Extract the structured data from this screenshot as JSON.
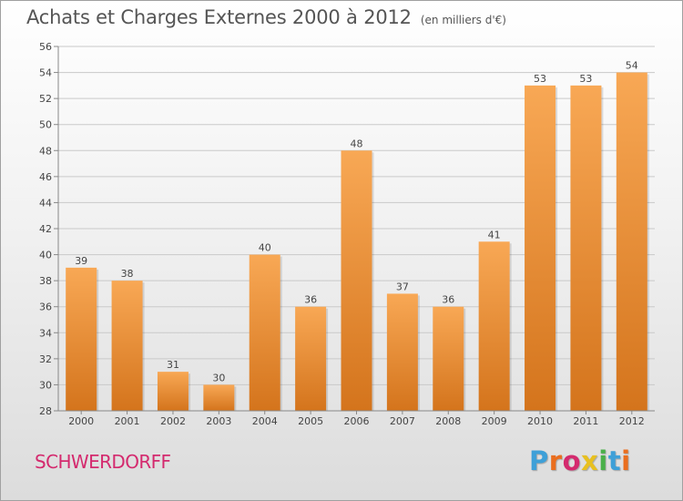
{
  "header": {
    "title": "Achats et Charges Externes 2000 à 2012",
    "unit_note": "(en milliers d'€)"
  },
  "footer": {
    "commune": "SCHWERDORFF",
    "brand": "Proxiti",
    "brand_colors": [
      "#3ea0d8",
      "#ea6e1e",
      "#d42a6e",
      "#e8c020",
      "#4ab04a",
      "#3ea0d8",
      "#ea6e1e"
    ]
  },
  "colors": {
    "bar_light": "#f8a855",
    "bar_dark": "#d4741c",
    "grid": "#c9c9c9",
    "axis_text": "#444444"
  },
  "chart_data": {
    "type": "bar",
    "categories": [
      "2000",
      "2001",
      "2002",
      "2003",
      "2004",
      "2005",
      "2006",
      "2007",
      "2008",
      "2009",
      "2010",
      "2011",
      "2012"
    ],
    "values": [
      39,
      38,
      31,
      30,
      40,
      36,
      48,
      37,
      36,
      41,
      53,
      53,
      54
    ],
    "title": "Achats et Charges Externes 2000 à 2012",
    "unit": "(en milliers d'€)",
    "xlabel": "",
    "ylabel": "",
    "ylim": [
      28,
      56
    ],
    "yticks": [
      28,
      30,
      32,
      34,
      36,
      38,
      40,
      42,
      44,
      46,
      48,
      50,
      52,
      54,
      56
    ],
    "grid": true,
    "data_labels": true
  }
}
